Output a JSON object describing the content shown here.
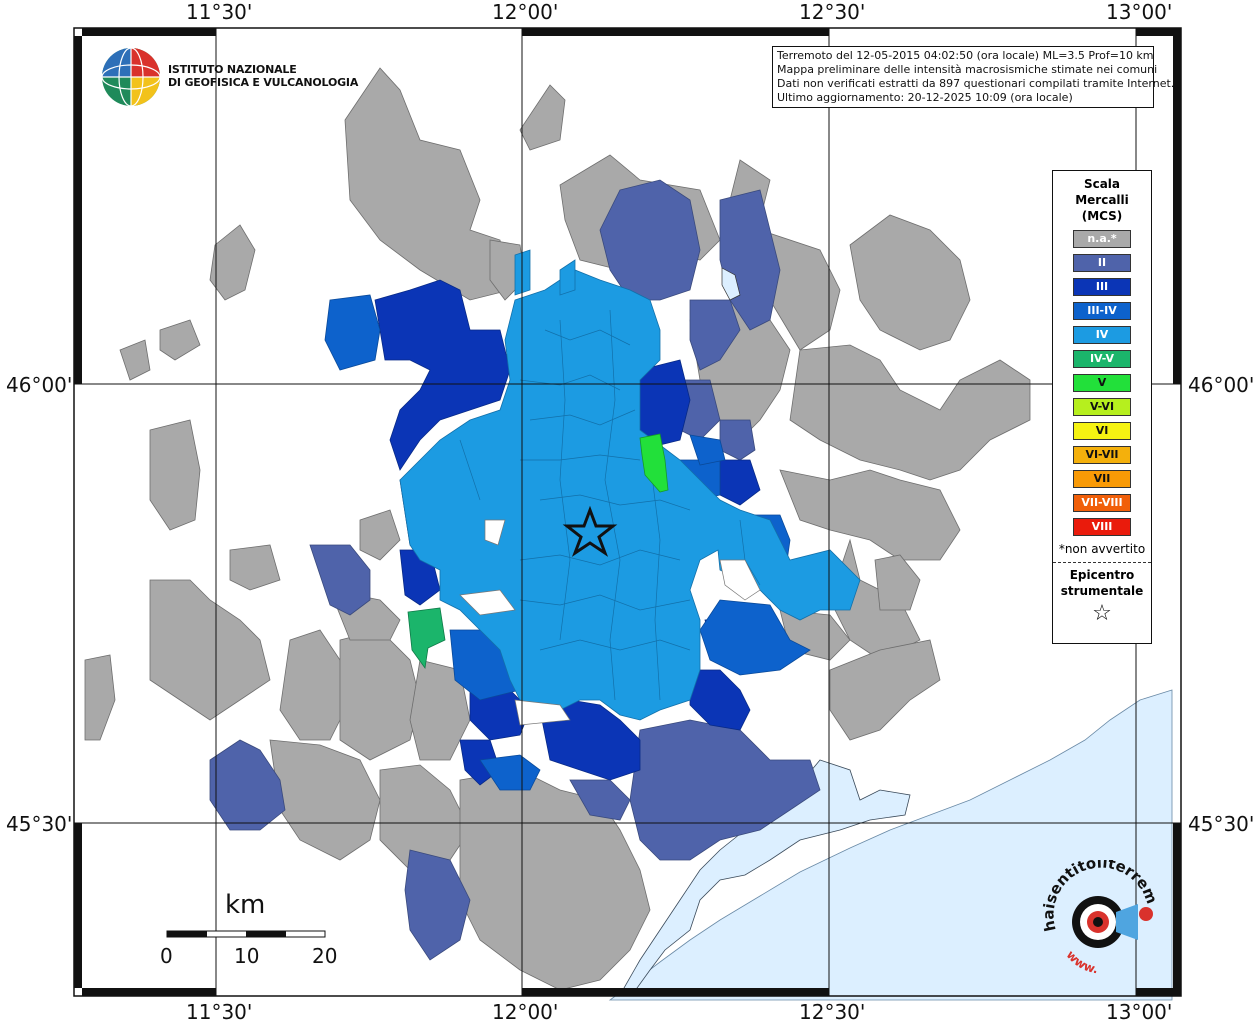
{
  "axis": {
    "lon_ticks": [
      "11°30'",
      "12°00'",
      "12°30'",
      "13°00'"
    ],
    "lat_ticks": [
      "46°00'",
      "45°30'"
    ]
  },
  "institute": {
    "name_line1": "ISTITUTO NAZIONALE",
    "name_line2": "DI GEOFISICA E VULCANOLOGIA"
  },
  "info": {
    "line1": "Terremoto del 12-05-2015 04:02:50 (ora locale) ML=3.5 Prof=10 km",
    "line2": "Mappa preliminare delle intensità macrosismiche stimate nei comuni",
    "line3": "Dati non verificati estratti da 897 questionari compilati tramite Internet.",
    "line4": "Ultimo aggiornamento: 20-12-2025 10:09 (ora locale)"
  },
  "legend": {
    "title_line1": "Scala",
    "title_line2": "Mercalli",
    "title_line3": "(MCS)",
    "items": [
      {
        "label": "n.a.*",
        "color": "#a9a9a9"
      },
      {
        "label": "II",
        "color": "#4f63aa"
      },
      {
        "label": "III",
        "color": "#0b35b6"
      },
      {
        "label": "III-IV",
        "color": "#0d62cc"
      },
      {
        "label": "IV",
        "color": "#1c9be2"
      },
      {
        "label": "IV-V",
        "color": "#1bb56b"
      },
      {
        "label": "V",
        "color": "#22e03a"
      },
      {
        "label": "V-VI",
        "color": "#b6ef1e"
      },
      {
        "label": "VI",
        "color": "#f6f312"
      },
      {
        "label": "VI-VII",
        "color": "#f4b00c"
      },
      {
        "label": "VII",
        "color": "#f99a06"
      },
      {
        "label": "VII-VIII",
        "color": "#f15f09"
      },
      {
        "label": "VIII",
        "color": "#ea1b0c"
      }
    ],
    "note": "*non avvertito",
    "epicenter_line1": "Epicentro",
    "epicenter_line2": "strumentale",
    "epicenter_symbol": "☆"
  },
  "scale_bar": {
    "unit": "km",
    "labels": [
      "0",
      "10",
      "20"
    ]
  },
  "branding": {
    "site": "haisentitoilterremoto.it",
    "www": "www."
  },
  "colors": {
    "sea": "#dcefff",
    "na": "#a9a9a9",
    "II": "#4f63aa",
    "III": "#0b35b6",
    "III-IV": "#0d62cc",
    "IV": "#1c9be2",
    "IV-V": "#1bb56b",
    "V": "#22e03a"
  }
}
